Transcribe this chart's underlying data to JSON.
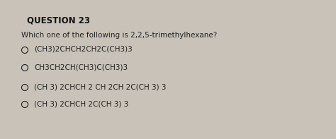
{
  "title": "QUESTION 23",
  "question": "Which one of the following is 2,2,5-trimethylhexane?",
  "options": [
    "(CH3)2CHCH2CH2C(CH3)3",
    "CH3CH2CH(CH3)C(CH3)3",
    "(CH 3) 2CHCH 2 CH 2CH 2C(CH 3) 3",
    "(CH 3) 2CHCH 2C(CH 3) 3"
  ],
  "bg_color": "#c8c2b8",
  "title_color": "#111111",
  "text_color": "#222222",
  "title_fontsize": 8.5,
  "question_fontsize": 7.5,
  "option_fontsize": 7.5
}
